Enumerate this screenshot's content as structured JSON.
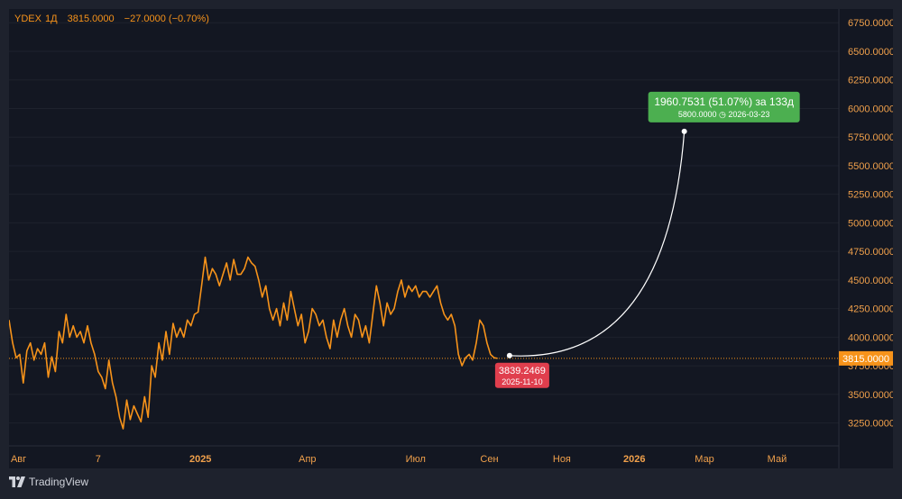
{
  "legend": {
    "symbol": "YDEX",
    "interval": "1Д",
    "price": "3815.0000",
    "change": "−27.0000 (−0.70%)"
  },
  "colors": {
    "background": "#131722",
    "series": "#f7931a",
    "axis_text": "#f0a04b",
    "grid": "#1e222d",
    "price_tag": "#f7931a",
    "start_label": "#e03e4d",
    "end_label": "#4caf50",
    "projection": "#ffffff"
  },
  "footer": {
    "brand": "TradingView",
    "logo_icon": "tradingview-logo-icon"
  },
  "chart_data": {
    "type": "line",
    "y_ticks": [
      "6750.0000",
      "6500.0000",
      "6250.0000",
      "6000.0000",
      "5750.0000",
      "5500.0000",
      "5250.0000",
      "5000.0000",
      "4750.0000",
      "4500.0000",
      "4250.0000",
      "4000.0000",
      "3750.0000",
      "3500.0000",
      "3250.0000"
    ],
    "ylim": [
      3050,
      6870
    ],
    "x_ticks": [
      {
        "label": "Авг",
        "date": "2024-08-01",
        "bold": false
      },
      {
        "label": "7",
        "date": "2024-10-07",
        "bold": false
      },
      {
        "label": "2025",
        "date": "2025-01-01",
        "bold": true
      },
      {
        "label": "Апр",
        "date": "2025-04-01",
        "bold": false
      },
      {
        "label": "Июл",
        "date": "2025-07-01",
        "bold": false
      },
      {
        "label": "Сен",
        "date": "2025-09-01",
        "bold": false
      },
      {
        "label": "Ноя",
        "date": "2025-11-01",
        "bold": false
      },
      {
        "label": "2026",
        "date": "2026-01-01",
        "bold": true
      },
      {
        "label": "Мар",
        "date": "2026-03-01",
        "bold": false
      },
      {
        "label": "Май",
        "date": "2026-05-01",
        "bold": false
      }
    ],
    "xlim": [
      "2024-07-24",
      "2026-06-22"
    ],
    "grid": false,
    "current_price": 3815,
    "current_price_label": "3815.0000",
    "series": [
      {
        "values": [
          [
            "2024-07-24",
            4150
          ],
          [
            "2024-07-27",
            3950
          ],
          [
            "2024-07-30",
            3820
          ],
          [
            "2024-08-02",
            3850
          ],
          [
            "2024-08-05",
            3600
          ],
          [
            "2024-08-08",
            3880
          ],
          [
            "2024-08-11",
            3950
          ],
          [
            "2024-08-14",
            3800
          ],
          [
            "2024-08-17",
            3900
          ],
          [
            "2024-08-20",
            3850
          ],
          [
            "2024-08-23",
            3950
          ],
          [
            "2024-08-26",
            3650
          ],
          [
            "2024-08-29",
            3830
          ],
          [
            "2024-09-01",
            3700
          ],
          [
            "2024-09-04",
            4050
          ],
          [
            "2024-09-07",
            3950
          ],
          [
            "2024-09-10",
            4200
          ],
          [
            "2024-09-13",
            4000
          ],
          [
            "2024-09-16",
            4100
          ],
          [
            "2024-09-19",
            4000
          ],
          [
            "2024-09-22",
            4050
          ],
          [
            "2024-09-25",
            3950
          ],
          [
            "2024-09-28",
            4100
          ],
          [
            "2024-10-01",
            3950
          ],
          [
            "2024-10-04",
            3850
          ],
          [
            "2024-10-07",
            3700
          ],
          [
            "2024-10-10",
            3650
          ],
          [
            "2024-10-13",
            3550
          ],
          [
            "2024-10-16",
            3800
          ],
          [
            "2024-10-19",
            3600
          ],
          [
            "2024-10-22",
            3480
          ],
          [
            "2024-10-25",
            3300
          ],
          [
            "2024-10-28",
            3200
          ],
          [
            "2024-10-31",
            3450
          ],
          [
            "2024-11-03",
            3280
          ],
          [
            "2024-11-06",
            3400
          ],
          [
            "2024-11-09",
            3330
          ],
          [
            "2024-11-12",
            3260
          ],
          [
            "2024-11-15",
            3480
          ],
          [
            "2024-11-18",
            3300
          ],
          [
            "2024-11-21",
            3750
          ],
          [
            "2024-11-24",
            3650
          ],
          [
            "2024-11-27",
            3950
          ],
          [
            "2024-11-30",
            3800
          ],
          [
            "2024-12-03",
            4050
          ],
          [
            "2024-12-06",
            3850
          ],
          [
            "2024-12-09",
            4120
          ],
          [
            "2024-12-12",
            4000
          ],
          [
            "2024-12-15",
            4080
          ],
          [
            "2024-12-18",
            4000
          ],
          [
            "2024-12-21",
            4150
          ],
          [
            "2024-12-24",
            4100
          ],
          [
            "2024-12-27",
            4200
          ],
          [
            "2024-12-30",
            4220
          ],
          [
            "2025-01-02",
            4450
          ],
          [
            "2025-01-05",
            4700
          ],
          [
            "2025-01-08",
            4500
          ],
          [
            "2025-01-11",
            4600
          ],
          [
            "2025-01-14",
            4550
          ],
          [
            "2025-01-17",
            4450
          ],
          [
            "2025-01-20",
            4550
          ],
          [
            "2025-01-23",
            4650
          ],
          [
            "2025-01-26",
            4500
          ],
          [
            "2025-01-29",
            4680
          ],
          [
            "2025-02-01",
            4550
          ],
          [
            "2025-02-04",
            4550
          ],
          [
            "2025-02-07",
            4600
          ],
          [
            "2025-02-10",
            4700
          ],
          [
            "2025-02-13",
            4650
          ],
          [
            "2025-02-16",
            4620
          ],
          [
            "2025-02-19",
            4500
          ],
          [
            "2025-02-22",
            4350
          ],
          [
            "2025-02-25",
            4450
          ],
          [
            "2025-02-28",
            4250
          ],
          [
            "2025-03-03",
            4150
          ],
          [
            "2025-03-06",
            4250
          ],
          [
            "2025-03-09",
            4100
          ],
          [
            "2025-03-12",
            4300
          ],
          [
            "2025-03-15",
            4150
          ],
          [
            "2025-03-18",
            4400
          ],
          [
            "2025-03-21",
            4250
          ],
          [
            "2025-03-24",
            4100
          ],
          [
            "2025-03-27",
            4200
          ],
          [
            "2025-03-30",
            3950
          ],
          [
            "2025-04-02",
            4050
          ],
          [
            "2025-04-05",
            4250
          ],
          [
            "2025-04-08",
            4200
          ],
          [
            "2025-04-11",
            4100
          ],
          [
            "2025-04-14",
            4150
          ],
          [
            "2025-04-17",
            4000
          ],
          [
            "2025-04-20",
            3900
          ],
          [
            "2025-04-23",
            4150
          ],
          [
            "2025-04-26",
            4000
          ],
          [
            "2025-04-29",
            4150
          ],
          [
            "2025-05-02",
            4250
          ],
          [
            "2025-05-05",
            4100
          ],
          [
            "2025-05-08",
            4000
          ],
          [
            "2025-05-11",
            4200
          ],
          [
            "2025-05-14",
            4150
          ],
          [
            "2025-05-17",
            4000
          ],
          [
            "2025-05-20",
            4100
          ],
          [
            "2025-05-23",
            3950
          ],
          [
            "2025-05-26",
            4200
          ],
          [
            "2025-05-29",
            4450
          ],
          [
            "2025-06-01",
            4300
          ],
          [
            "2025-06-04",
            4100
          ],
          [
            "2025-06-07",
            4300
          ],
          [
            "2025-06-10",
            4200
          ],
          [
            "2025-06-13",
            4250
          ],
          [
            "2025-06-16",
            4400
          ],
          [
            "2025-06-19",
            4500
          ],
          [
            "2025-06-22",
            4350
          ],
          [
            "2025-06-25",
            4450
          ],
          [
            "2025-06-28",
            4400
          ],
          [
            "2025-07-01",
            4450
          ],
          [
            "2025-07-04",
            4350
          ],
          [
            "2025-07-07",
            4400
          ],
          [
            "2025-07-10",
            4400
          ],
          [
            "2025-07-13",
            4350
          ],
          [
            "2025-07-16",
            4400
          ],
          [
            "2025-07-19",
            4450
          ],
          [
            "2025-07-22",
            4300
          ],
          [
            "2025-07-25",
            4200
          ],
          [
            "2025-07-28",
            4150
          ],
          [
            "2025-07-31",
            4200
          ],
          [
            "2025-08-03",
            4100
          ],
          [
            "2025-08-06",
            3850
          ],
          [
            "2025-08-09",
            3750
          ],
          [
            "2025-08-12",
            3820
          ],
          [
            "2025-08-15",
            3850
          ],
          [
            "2025-08-18",
            3800
          ],
          [
            "2025-08-21",
            3950
          ],
          [
            "2025-08-24",
            4150
          ],
          [
            "2025-08-27",
            4100
          ],
          [
            "2025-08-30",
            3950
          ],
          [
            "2025-09-02",
            3850
          ],
          [
            "2025-09-05",
            3820
          ],
          [
            "2025-09-08",
            3815
          ]
        ]
      }
    ],
    "projection": {
      "start": {
        "date": "2025-09-18",
        "value": 3839.2469,
        "label_value": "3839.2469",
        "label_date": "2025-11-10"
      },
      "end": {
        "date": "2026-02-12",
        "value": 5800.0,
        "label_value": "5800.0000",
        "label_date": "2026-03-23"
      },
      "summary": "1960.7531 (51.07%) за 133д"
    }
  }
}
